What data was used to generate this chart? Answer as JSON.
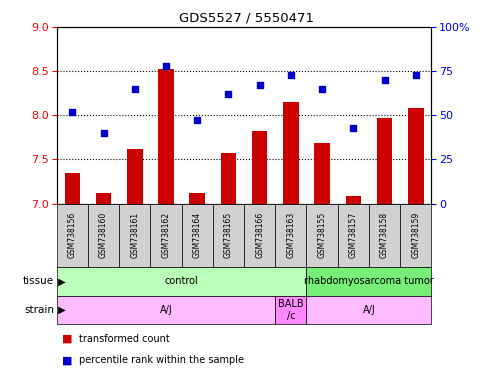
{
  "title": "GDS5527 / 5550471",
  "samples": [
    "GSM738156",
    "GSM738160",
    "GSM738161",
    "GSM738162",
    "GSM738164",
    "GSM738165",
    "GSM738166",
    "GSM738163",
    "GSM738155",
    "GSM738157",
    "GSM738158",
    "GSM738159"
  ],
  "bar_values": [
    7.35,
    7.12,
    7.62,
    8.52,
    7.12,
    7.57,
    7.82,
    8.15,
    7.68,
    7.08,
    7.97,
    8.08
  ],
  "scatter_values": [
    52,
    40,
    65,
    78,
    47,
    62,
    67,
    73,
    65,
    43,
    70,
    73
  ],
  "ylim_left": [
    7.0,
    9.0
  ],
  "ylim_right": [
    0,
    100
  ],
  "yticks_left": [
    7.0,
    7.5,
    8.0,
    8.5,
    9.0
  ],
  "yticks_right": [
    0,
    25,
    50,
    75,
    100
  ],
  "bar_color": "#cc0000",
  "scatter_color": "#0000cc",
  "grid_lines": [
    7.5,
    8.0,
    8.5
  ],
  "tissue_boxes": [
    {
      "text": "control",
      "start": 0,
      "end": 7,
      "color": "#bbffbb"
    },
    {
      "text": "rhabdomyosarcoma tumor",
      "start": 8,
      "end": 11,
      "color": "#77ee77"
    }
  ],
  "strain_boxes": [
    {
      "text": "A/J",
      "start": 0,
      "end": 6,
      "color": "#ffbbff"
    },
    {
      "text": "BALB\n/c",
      "start": 7,
      "end": 7,
      "color": "#ff88ff"
    },
    {
      "text": "A/J",
      "start": 8,
      "end": 11,
      "color": "#ffbbff"
    }
  ],
  "sample_cell_color": "#d0d0d0",
  "legend_red_label": "transformed count",
  "legend_blue_label": "percentile rank within the sample",
  "bar_width": 0.5,
  "xlim": [
    -0.5,
    11.5
  ]
}
